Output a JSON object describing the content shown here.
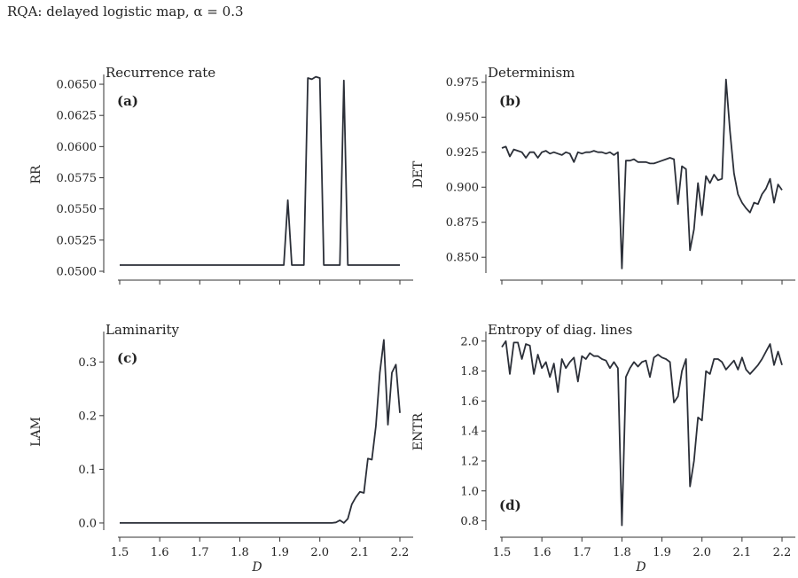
{
  "suptitle": "RQA: delayed logistic map, α = 0.3",
  "colors": {
    "line": "#2b2f38",
    "axis": "#333333",
    "background": "#ffffff"
  },
  "chart_data": [
    {
      "id": "rr",
      "type": "line",
      "title": "Recurrence rate",
      "tag": "(a)",
      "tag_position": "top-left",
      "xlabel": "",
      "ylabel": "RR",
      "xlim": [
        1.5,
        2.2
      ],
      "ylim": [
        0.05,
        0.0655
      ],
      "x_ticks": [
        1.5,
        1.6,
        1.7,
        1.8,
        1.9,
        2.0,
        2.1,
        2.2
      ],
      "x_tick_labels": [],
      "y_ticks": [
        0.05,
        0.0525,
        0.055,
        0.0575,
        0.06,
        0.0625,
        0.065
      ],
      "y_tick_labels": [
        "0.0500",
        "0.0525",
        "0.0550",
        "0.0575",
        "0.0600",
        "0.0625",
        "0.0650"
      ],
      "x": [
        1.5,
        1.91,
        1.92,
        1.93,
        1.96,
        1.97,
        1.98,
        1.99,
        2.0,
        2.01,
        2.05,
        2.06,
        2.07,
        2.2
      ],
      "y": [
        0.0505,
        0.0505,
        0.0557,
        0.0505,
        0.0505,
        0.0655,
        0.0654,
        0.0656,
        0.0655,
        0.0505,
        0.0505,
        0.0653,
        0.0505,
        0.0505
      ]
    },
    {
      "id": "det",
      "type": "line",
      "title": "Determinism",
      "tag": "(b)",
      "tag_position": "top-left",
      "xlabel": "",
      "ylabel": "DET",
      "xlim": [
        1.5,
        2.2
      ],
      "ylim": [
        0.84,
        0.978
      ],
      "x_ticks": [
        1.5,
        1.6,
        1.7,
        1.8,
        1.9,
        2.0,
        2.1,
        2.2
      ],
      "x_tick_labels": [],
      "y_ticks": [
        0.85,
        0.875,
        0.9,
        0.925,
        0.95,
        0.975
      ],
      "y_tick_labels": [
        "0.850",
        "0.875",
        "0.900",
        "0.925",
        "0.950",
        "0.975"
      ],
      "x": [
        1.5,
        1.51,
        1.52,
        1.53,
        1.54,
        1.55,
        1.56,
        1.57,
        1.58,
        1.59,
        1.6,
        1.61,
        1.62,
        1.63,
        1.64,
        1.65,
        1.66,
        1.67,
        1.68,
        1.69,
        1.7,
        1.71,
        1.72,
        1.73,
        1.74,
        1.75,
        1.76,
        1.77,
        1.78,
        1.79,
        1.8,
        1.81,
        1.82,
        1.83,
        1.84,
        1.85,
        1.86,
        1.87,
        1.88,
        1.89,
        1.9,
        1.91,
        1.92,
        1.93,
        1.94,
        1.95,
        1.96,
        1.97,
        1.98,
        1.99,
        2.0,
        2.01,
        2.02,
        2.03,
        2.04,
        2.05,
        2.06,
        2.07,
        2.08,
        2.09,
        2.1,
        2.11,
        2.12,
        2.13,
        2.14,
        2.15,
        2.16,
        2.17,
        2.18,
        2.19,
        2.2
      ],
      "y": [
        0.928,
        0.929,
        0.922,
        0.927,
        0.926,
        0.925,
        0.921,
        0.925,
        0.925,
        0.921,
        0.925,
        0.926,
        0.924,
        0.925,
        0.924,
        0.923,
        0.925,
        0.924,
        0.918,
        0.925,
        0.924,
        0.925,
        0.925,
        0.926,
        0.925,
        0.925,
        0.924,
        0.925,
        0.923,
        0.925,
        0.842,
        0.919,
        0.919,
        0.92,
        0.918,
        0.918,
        0.918,
        0.917,
        0.917,
        0.918,
        0.919,
        0.92,
        0.921,
        0.92,
        0.888,
        0.915,
        0.913,
        0.855,
        0.87,
        0.903,
        0.88,
        0.908,
        0.903,
        0.909,
        0.905,
        0.906,
        0.977,
        0.94,
        0.91,
        0.895,
        0.889,
        0.885,
        0.882,
        0.889,
        0.888,
        0.895,
        0.899,
        0.906,
        0.889,
        0.902,
        0.898
      ]
    },
    {
      "id": "lam",
      "type": "line",
      "title": "Laminarity",
      "tag": "(c)",
      "tag_position": "top-left",
      "xlabel": "",
      "ylabel": "LAM",
      "xlim": [
        1.5,
        2.2
      ],
      "ylim": [
        -0.01,
        0.35
      ],
      "x_ticks": [
        1.5,
        1.6,
        1.7,
        1.8,
        1.9,
        2.0,
        2.1,
        2.2
      ],
      "x_tick_labels": [
        "1.5",
        "1.6",
        "1.7",
        "1.8",
        "1.9",
        "2.0",
        "2.1",
        "2.2"
      ],
      "y_ticks": [
        0.0,
        0.1,
        0.2,
        0.3
      ],
      "y_tick_labels": [
        "0.0",
        "0.1",
        "0.2",
        "0.3"
      ],
      "x": [
        1.5,
        2.03,
        2.04,
        2.05,
        2.06,
        2.07,
        2.08,
        2.09,
        2.1,
        2.11,
        2.12,
        2.13,
        2.14,
        2.15,
        2.16,
        2.17,
        2.18,
        2.19,
        2.2
      ],
      "y": [
        0.0,
        0.0,
        0.001,
        0.005,
        0.0,
        0.008,
        0.035,
        0.048,
        0.058,
        0.056,
        0.12,
        0.118,
        0.18,
        0.28,
        0.341,
        0.183,
        0.28,
        0.295,
        0.205
      ]
    },
    {
      "id": "entr",
      "type": "line",
      "title": "Entropy of diag. lines",
      "tag": "(d)",
      "tag_position": "bottom-left",
      "xlabel": "",
      "ylabel": "ENTR",
      "xlim": [
        1.5,
        2.2
      ],
      "ylim": [
        0.75,
        2.04
      ],
      "x_ticks": [
        1.5,
        1.6,
        1.7,
        1.8,
        1.9,
        2.0,
        2.1,
        2.2
      ],
      "x_tick_labels": [
        "1.5",
        "1.6",
        "1.7",
        "1.8",
        "1.9",
        "2.0",
        "2.1",
        "2.2"
      ],
      "y_ticks": [
        0.8,
        1.0,
        1.2,
        1.4,
        1.6,
        1.8,
        2.0
      ],
      "y_tick_labels": [
        "0.8",
        "1.0",
        "1.2",
        "1.4",
        "1.6",
        "1.8",
        "2.0"
      ],
      "x": [
        1.5,
        1.51,
        1.52,
        1.53,
        1.54,
        1.55,
        1.56,
        1.57,
        1.58,
        1.59,
        1.6,
        1.61,
        1.62,
        1.63,
        1.64,
        1.65,
        1.66,
        1.67,
        1.68,
        1.69,
        1.7,
        1.71,
        1.72,
        1.73,
        1.74,
        1.75,
        1.76,
        1.77,
        1.78,
        1.79,
        1.8,
        1.81,
        1.82,
        1.83,
        1.84,
        1.85,
        1.86,
        1.87,
        1.88,
        1.89,
        1.9,
        1.91,
        1.92,
        1.93,
        1.94,
        1.95,
        1.96,
        1.97,
        1.98,
        1.99,
        2.0,
        2.01,
        2.02,
        2.03,
        2.04,
        2.05,
        2.06,
        2.07,
        2.08,
        2.09,
        2.1,
        2.11,
        2.12,
        2.13,
        2.14,
        2.15,
        2.16,
        2.17,
        2.18,
        2.19,
        2.2
      ],
      "y": [
        1.96,
        2.0,
        1.78,
        1.99,
        1.99,
        1.88,
        1.98,
        1.97,
        1.78,
        1.91,
        1.82,
        1.86,
        1.76,
        1.85,
        1.66,
        1.88,
        1.82,
        1.86,
        1.89,
        1.73,
        1.9,
        1.88,
        1.92,
        1.9,
        1.9,
        1.88,
        1.87,
        1.82,
        1.86,
        1.82,
        0.77,
        1.76,
        1.82,
        1.86,
        1.83,
        1.86,
        1.87,
        1.76,
        1.89,
        1.91,
        1.89,
        1.88,
        1.86,
        1.59,
        1.63,
        1.8,
        1.88,
        1.03,
        1.2,
        1.49,
        1.47,
        1.8,
        1.78,
        1.88,
        1.88,
        1.86,
        1.81,
        1.84,
        1.87,
        1.81,
        1.89,
        1.81,
        1.78,
        1.81,
        1.84,
        1.88,
        1.93,
        1.98,
        1.84,
        1.93,
        1.84
      ]
    }
  ],
  "shared_xlabel": "D"
}
